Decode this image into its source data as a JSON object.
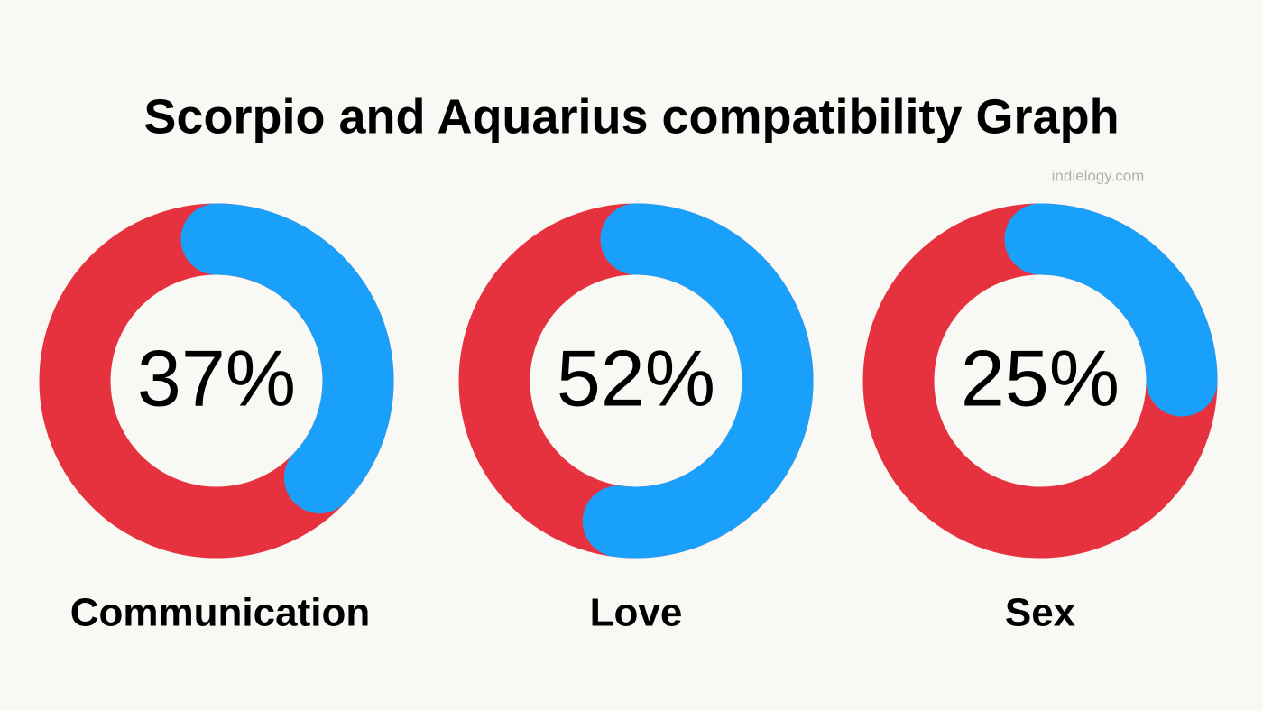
{
  "title": "Scorpio and Aquarius compatibility Graph",
  "source": "indielogy.com",
  "chart_data": [
    {
      "type": "donut",
      "title": "Communication",
      "values": [
        37
      ],
      "value_labels": [
        "37%"
      ],
      "color": "#18a0fb",
      "track_color": "#e6323e"
    },
    {
      "type": "donut",
      "title": "Love",
      "values": [
        52
      ],
      "value_labels": [
        "52%"
      ],
      "color": "#18a0fb",
      "track_color": "#e6323e"
    },
    {
      "type": "donut",
      "title": "Sex",
      "values": [
        25
      ],
      "value_labels": [
        "25%"
      ],
      "color": "#18a0fb",
      "track_color": "#e6323e"
    }
  ]
}
